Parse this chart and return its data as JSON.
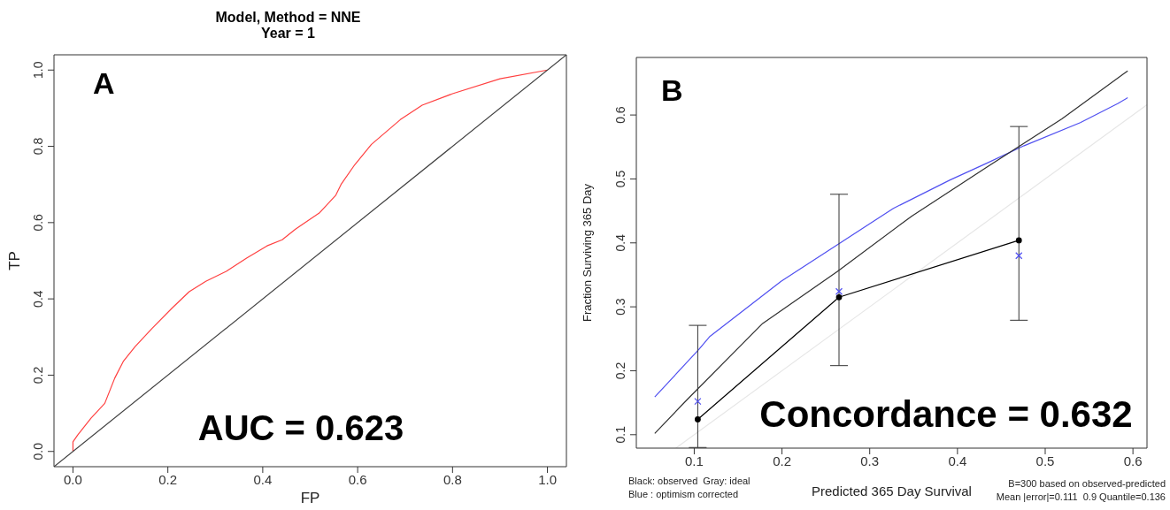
{
  "chart_data": [
    {
      "type": "line",
      "title": "Model, Method = NNE",
      "subtitle": "Year = 1",
      "xlabel": "FP",
      "ylabel": "TP",
      "xlim": [
        -0.04,
        1.04
      ],
      "ylim": [
        -0.04,
        1.04
      ],
      "xticks": [
        {
          "value": 0,
          "label": "0.0"
        },
        {
          "value": 0.2,
          "label": "0.2"
        },
        {
          "value": 0.4,
          "label": "0.4"
        },
        {
          "value": 0.6,
          "label": "0.6"
        },
        {
          "value": 0.8,
          "label": "0.8"
        },
        {
          "value": 1,
          "label": "1.0"
        }
      ],
      "yticks": [
        {
          "value": 0,
          "label": "0.0"
        },
        {
          "value": 0.2,
          "label": "0.2"
        },
        {
          "value": 0.4,
          "label": "0.4"
        },
        {
          "value": 0.6,
          "label": "0.6"
        },
        {
          "value": 0.8,
          "label": "0.8"
        },
        {
          "value": 1,
          "label": "1.0"
        }
      ],
      "marker": "none",
      "line_style": "solid",
      "series": [
        {
          "color": "#ff4040",
          "x": [
            0,
            0,
            0.01,
            0.038,
            0.067,
            0.088,
            0.106,
            0.131,
            0.167,
            0.209,
            0.245,
            0.28,
            0.323,
            0.366,
            0.409,
            0.441,
            0.469,
            0.519,
            0.554,
            0.565,
            0.594,
            0.629,
            0.69,
            0.736,
            0.8,
            0.9,
            1.0
          ],
          "values": [
            0,
            0.025,
            0.043,
            0.087,
            0.126,
            0.192,
            0.236,
            0.275,
            0.323,
            0.376,
            0.419,
            0.446,
            0.472,
            0.507,
            0.539,
            0.555,
            0.583,
            0.625,
            0.672,
            0.7,
            0.752,
            0.805,
            0.87,
            0.908,
            0.938,
            0.977,
            1.0
          ]
        },
        {
          "color": "#404040",
          "x": [
            -0.04,
            1.04
          ],
          "values": [
            -0.04,
            1.04
          ]
        }
      ],
      "annotations": [
        "A",
        "AUC = 0.623"
      ]
    },
    {
      "type": "line",
      "xlabel": "Predicted  365 Day Survival",
      "ylabel": "Fraction Surviving 365 Day",
      "xlim": [
        0.034,
        0.616
      ],
      "ylim": [
        0.079,
        0.69
      ],
      "xticks": [
        0.1,
        0.2,
        0.3,
        0.4,
        0.5,
        0.6
      ],
      "yticks": [
        0.1,
        0.2,
        0.3,
        0.4,
        0.5,
        0.6
      ],
      "line_style": "solid",
      "series": [
        {
          "color": "#e6e6e6",
          "marker": "none",
          "x": [
            0.079,
            0.616
          ],
          "values": [
            0.079,
            0.616
          ]
        },
        {
          "color": "#5050f0",
          "marker": "none",
          "x": [
            0.055,
            0.105,
            0.118,
            0.199,
            0.263,
            0.327,
            0.391,
            0.434,
            0.476,
            0.54,
            0.583,
            0.594
          ],
          "values": [
            0.159,
            0.233,
            0.254,
            0.34,
            0.397,
            0.454,
            0.498,
            0.525,
            0.552,
            0.588,
            0.618,
            0.627
          ]
        },
        {
          "color": "#303030",
          "marker": "none",
          "x": [
            0.055,
            0.092,
            0.178,
            0.263,
            0.348,
            0.434,
            0.519,
            0.594
          ],
          "values": [
            0.102,
            0.155,
            0.274,
            0.355,
            0.442,
            0.519,
            0.594,
            0.669
          ]
        },
        {
          "color": "#000000",
          "marker": "circle",
          "x": [
            0.104,
            0.265,
            0.47
          ],
          "values": [
            0.124,
            0.315,
            0.404
          ],
          "errors": [
            [
              0.08,
              0.271
            ],
            [
              0.208,
              0.476
            ],
            [
              0.279,
              0.582
            ]
          ]
        },
        {
          "type": "scatter",
          "color": "#5050f0",
          "marker": "cross",
          "x": [
            0.104,
            0.265,
            0.47
          ],
          "values": [
            0.152,
            0.324,
            0.38
          ]
        }
      ],
      "annotations": [
        "B",
        "Concordance = 0.632",
        "Black: observed  Gray: ideal",
        "Blue : optimism corrected",
        "B=300 based on observed-predicted",
        "Mean |error|=0.111  0.9 Quantile=0.136"
      ]
    }
  ]
}
